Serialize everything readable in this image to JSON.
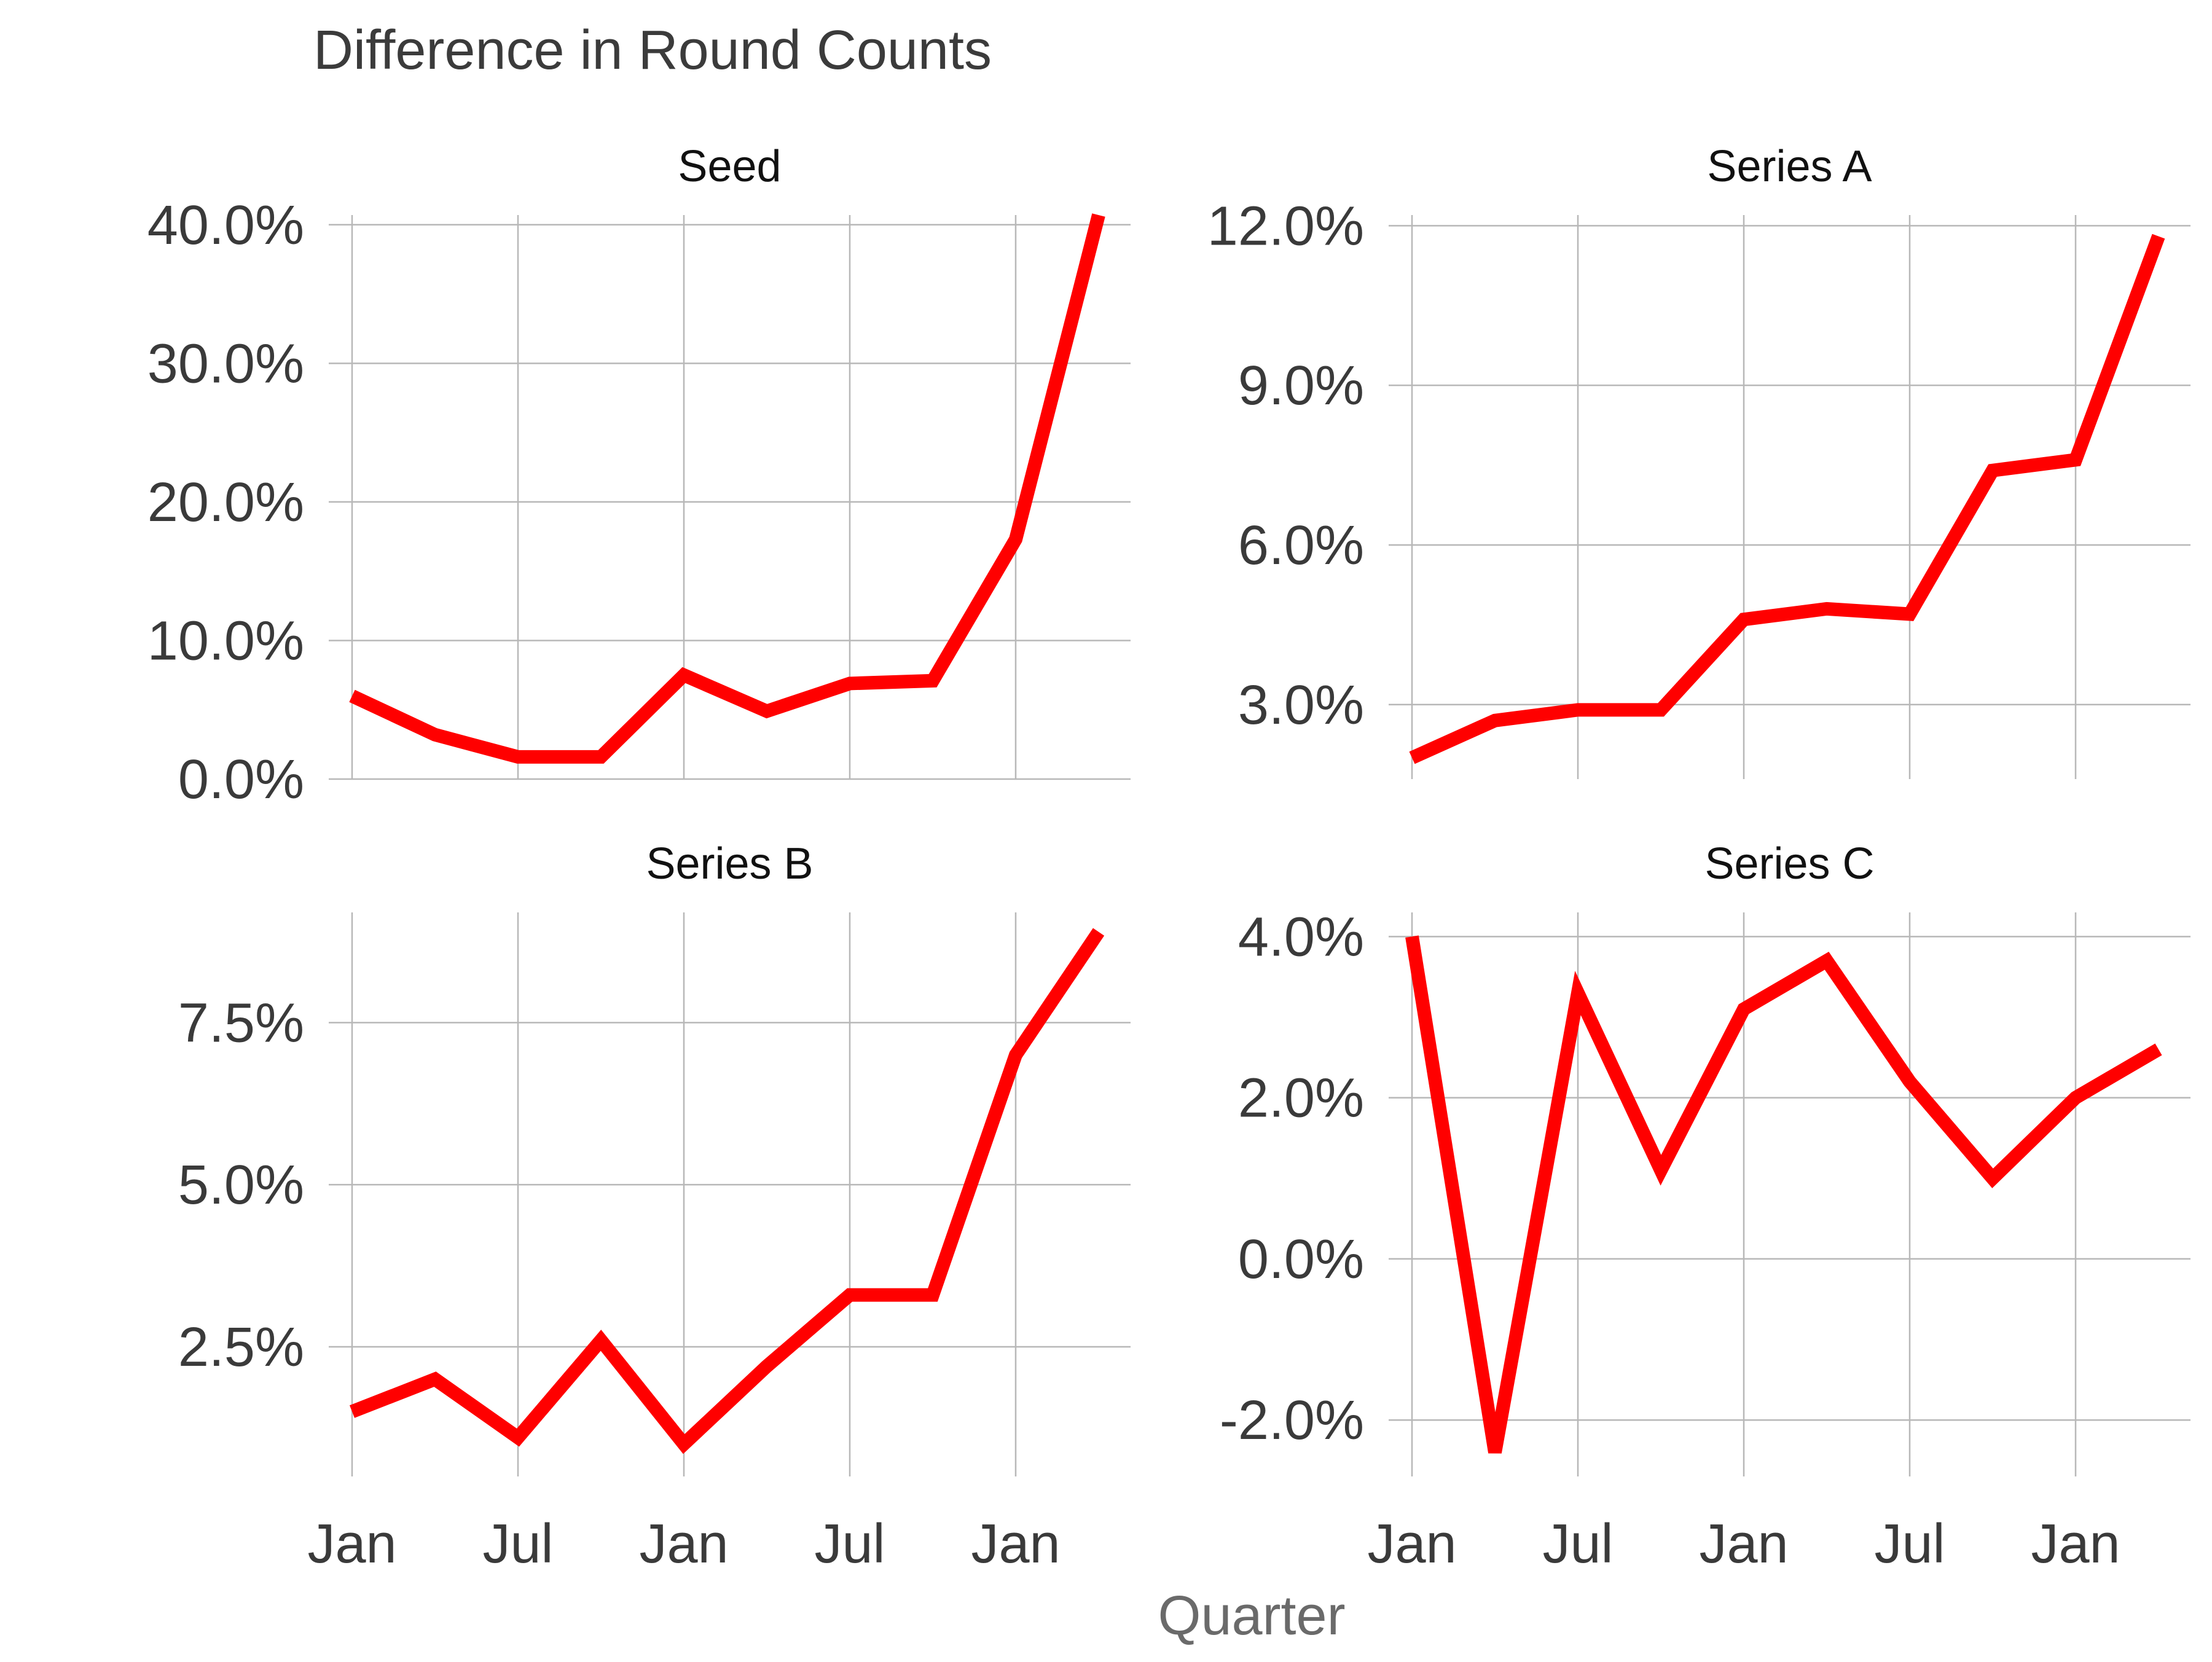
{
  "chart_data": {
    "type": "line",
    "title": "Difference in Round Counts",
    "xlabel": "Quarter",
    "x_tick_labels": [
      "Jan",
      "Jul",
      "Jan",
      "Jul",
      "Jan"
    ],
    "x_quarter_index_ticks": [
      0,
      2,
      4,
      6,
      8
    ],
    "line_color": "#ff0000",
    "grid": true,
    "legend": "none",
    "facets": [
      {
        "name": "Seed",
        "ylim": [
          0,
          40.7
        ],
        "y_ticks": [
          0,
          10,
          20,
          30,
          40
        ],
        "y_tick_labels": [
          "0.0%",
          "10.0%",
          "20.0%",
          "30.0%",
          "40.0%"
        ],
        "values": [
          6.0,
          3.2,
          1.6,
          1.6,
          7.5,
          4.9,
          6.9,
          7.1,
          17.3,
          40.7
        ]
      },
      {
        "name": "Series A",
        "ylim": [
          1.6,
          12.2
        ],
        "y_ticks": [
          3,
          6,
          9,
          12
        ],
        "y_tick_labels": [
          "3.0%",
          "6.0%",
          "9.0%",
          "12.0%"
        ],
        "values": [
          2.0,
          2.7,
          2.9,
          2.9,
          4.6,
          4.8,
          4.7,
          7.4,
          7.6,
          11.8
        ]
      },
      {
        "name": "Series B",
        "ylim": [
          0.5,
          9.2
        ],
        "y_ticks": [
          2.5,
          5.0,
          7.5
        ],
        "y_tick_labels": [
          "2.5%",
          "5.0%",
          "7.5%"
        ],
        "values": [
          1.5,
          2.0,
          1.1,
          2.6,
          1.0,
          2.2,
          3.3,
          3.3,
          7.0,
          8.9
        ]
      },
      {
        "name": "Series C",
        "ylim": [
          -2.7,
          4.3
        ],
        "y_ticks": [
          -2,
          0,
          2,
          4
        ],
        "y_tick_labels": [
          "-2.0%",
          "0.0%",
          "2.0%",
          "4.0%"
        ],
        "values": [
          4.0,
          -2.4,
          3.3,
          1.1,
          3.1,
          3.7,
          2.2,
          1.0,
          2.0,
          2.6
        ]
      }
    ]
  }
}
